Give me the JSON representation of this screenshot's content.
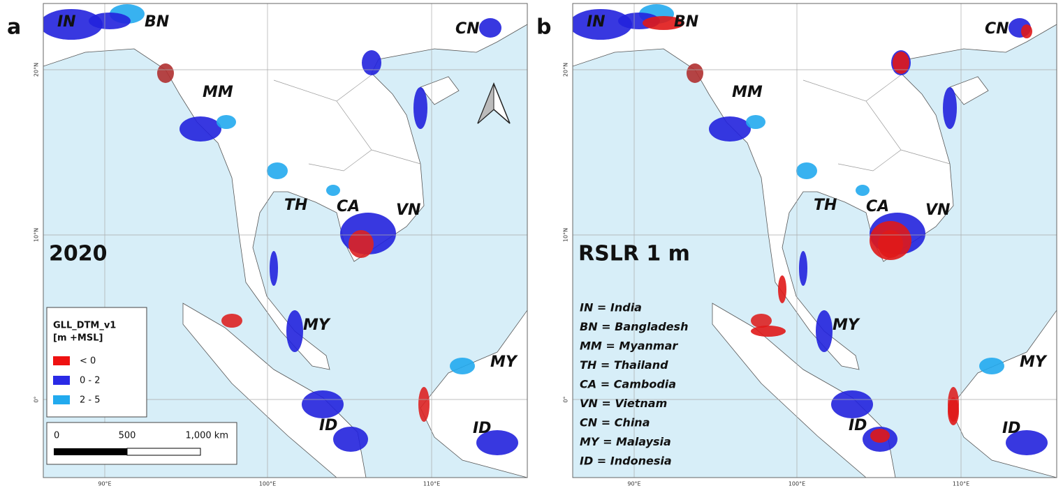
{
  "panels": [
    {
      "letter": "a",
      "label": "2020",
      "country_labels": [
        "IN",
        "BN",
        "CN",
        "MM",
        "TH",
        "CA",
        "VN",
        "MY",
        "MY",
        "ID",
        "ID"
      ]
    },
    {
      "letter": "b",
      "label": "RSLR 1 m",
      "country_labels": [
        "IN",
        "BN",
        "CN",
        "MM",
        "TH",
        "CA",
        "VN",
        "MY",
        "MY",
        "ID",
        "ID"
      ]
    }
  ],
  "latitude_labels": [
    "20°N",
    "10°N",
    "0°"
  ],
  "longitude_labels": [
    "90°E",
    "100°E",
    "110°E"
  ],
  "legend": {
    "title": "GLL_DTM_v1",
    "subtitle": "[m +MSL]",
    "entries": [
      "< 0",
      "0 - 2",
      "2 - 5"
    ]
  },
  "scale_bar": [
    "0",
    "500",
    "1,000 km"
  ],
  "key": [
    "IN = India",
    "BN = Bangladesh",
    "MM = Myanmar",
    "TH = Thailand",
    "CA = Cambodia",
    "VN = Vietnam",
    "CN = China",
    "MY = Malaysia",
    "ID = Indonesia"
  ]
}
